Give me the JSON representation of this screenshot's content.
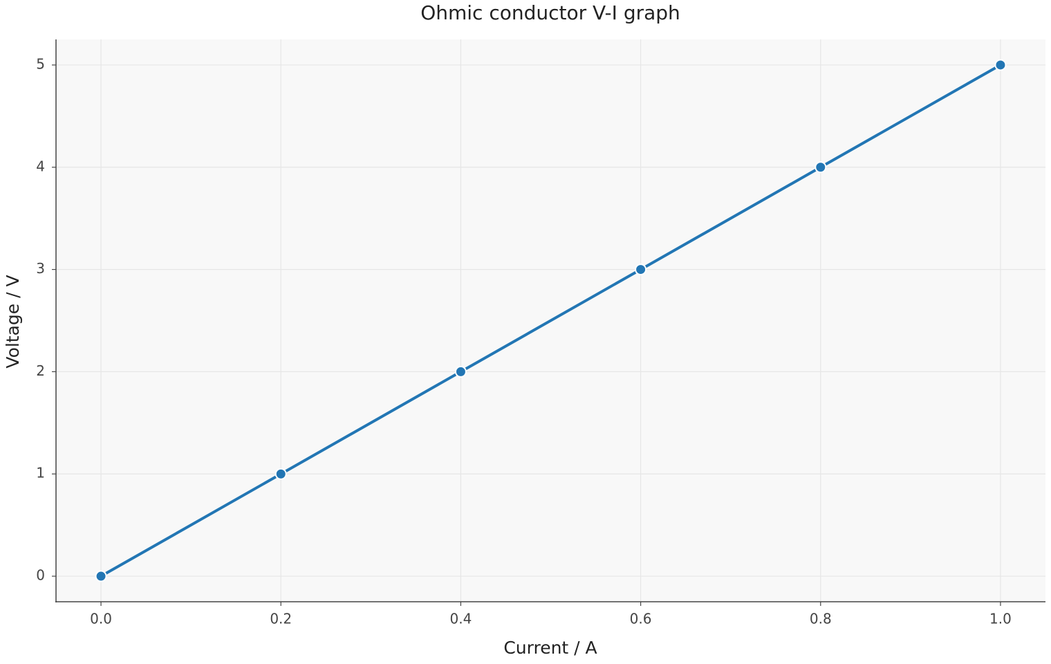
{
  "chart_data": {
    "type": "line",
    "title": "Ohmic conductor V-I graph",
    "x_label": "Current / A",
    "y_label": "Voltage / V",
    "x": [
      0,
      0.2,
      0.4,
      0.6,
      0.8,
      1.0
    ],
    "values": [
      0,
      1,
      2,
      3,
      4,
      5
    ],
    "color": "#2276b4",
    "xlim": [
      -0.05,
      1.05
    ],
    "ylim": [
      -0.25,
      5.25
    ],
    "xticks": [
      {
        "value": 0,
        "label": "0.0"
      },
      0.2,
      0.4,
      0.6,
      0.8,
      {
        "value": 1,
        "label": "1.0"
      }
    ],
    "yticks": [
      0,
      1,
      2,
      3,
      4,
      5
    ],
    "grid": true,
    "markers": true
  }
}
